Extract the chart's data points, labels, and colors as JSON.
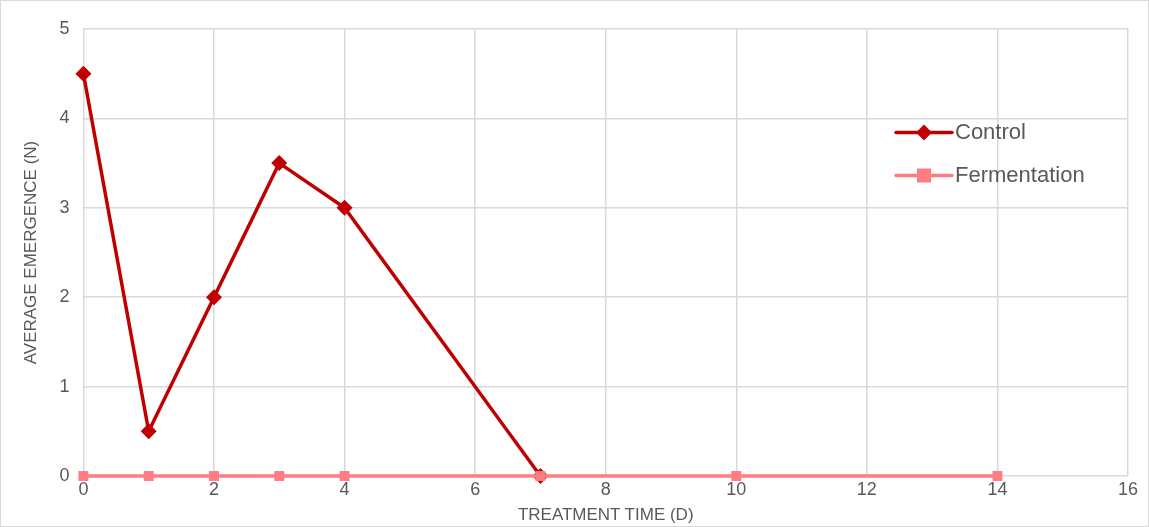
{
  "chart_data": {
    "type": "line",
    "xlabel": "TREATMENT TIME (D)",
    "ylabel": "AVERAGE EMERGENCE (N)",
    "xlim": [
      0,
      16
    ],
    "xticks": [
      0,
      2,
      4,
      6,
      8,
      10,
      12,
      14,
      16
    ],
    "ylim": [
      0,
      5
    ],
    "yticks": [
      0,
      1,
      2,
      3,
      4,
      5
    ],
    "grid": true,
    "legend": "right",
    "line_style": "solid",
    "series": [
      {
        "name": "Control",
        "color": "#c00000",
        "marker": "diamond",
        "x": [
          0,
          1,
          2,
          3,
          4,
          7
        ],
        "values": [
          4.5,
          0.5,
          2,
          3.5,
          3,
          0
        ]
      },
      {
        "name": "Fermentation",
        "color": "#ff7c80",
        "marker": "square",
        "x": [
          0,
          1,
          2,
          3,
          4,
          7,
          10,
          14
        ],
        "values": [
          0,
          0,
          0,
          0,
          0,
          0,
          0,
          0
        ]
      }
    ]
  }
}
